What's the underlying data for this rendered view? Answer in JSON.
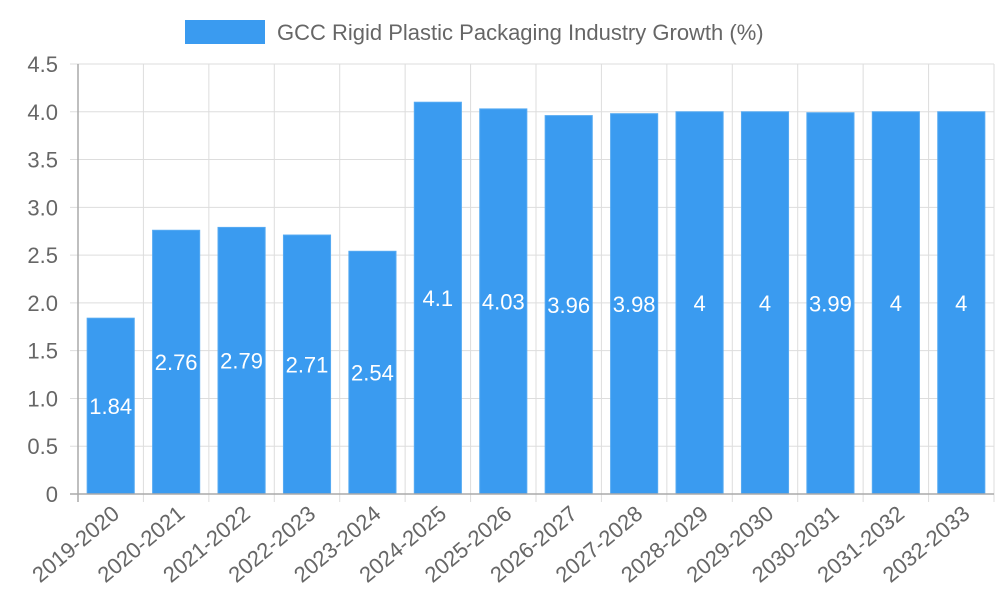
{
  "colors": {
    "bar": "#3a9bf0",
    "bar_border": "#55aaf2",
    "grid": "#dddddd",
    "axis": "#aaaaaa",
    "text": "#666666",
    "data_label": "#ffffff"
  },
  "chart_data": {
    "type": "bar",
    "title": "",
    "xlabel": "",
    "ylabel": "",
    "legend": {
      "position": "top",
      "entries": [
        "GCC Rigid Plastic Packaging Industry Growth (%)"
      ]
    },
    "grid": true,
    "ylim": [
      0,
      4.5
    ],
    "yticks": [
      "0",
      "0.5",
      "1.0",
      "1.5",
      "2.0",
      "2.5",
      "3.0",
      "3.5",
      "4.0",
      "4.5"
    ],
    "categories": [
      "2019-2020",
      "2020-2021",
      "2021-2022",
      "2022-2023",
      "2023-2024",
      "2024-2025",
      "2025-2026",
      "2026-2027",
      "2027-2028",
      "2028-2029",
      "2029-2030",
      "2030-2031",
      "2031-2032",
      "2032-2033"
    ],
    "series": [
      {
        "name": "GCC Rigid Plastic Packaging Industry Growth (%)",
        "values": [
          1.84,
          2.76,
          2.79,
          2.71,
          2.54,
          4.1,
          4.03,
          3.96,
          3.98,
          4,
          4,
          3.99,
          4,
          4
        ],
        "labels": [
          "1.84",
          "2.76",
          "2.79",
          "2.71",
          "2.54",
          "4.1",
          "4.03",
          "3.96",
          "3.98",
          "4",
          "4",
          "3.99",
          "4",
          "4"
        ]
      }
    ]
  }
}
